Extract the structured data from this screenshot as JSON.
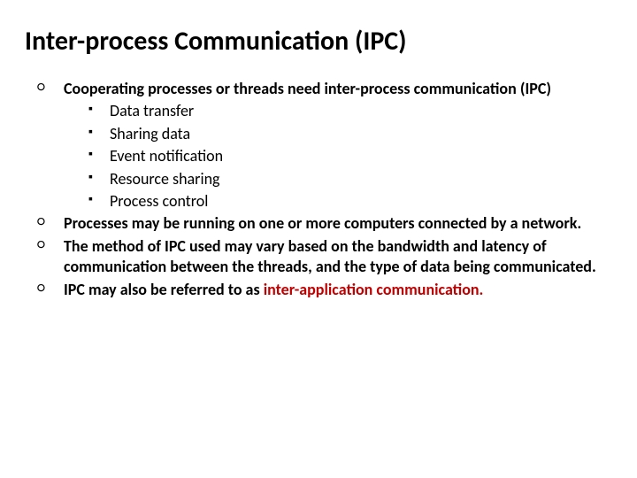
{
  "slide": {
    "title": "Inter-process Communication (IPC)",
    "title_color": "#000000",
    "title_fontsize": 30,
    "title_fontweight": 700,
    "background_color": "#ffffff",
    "body_fontsize": 18,
    "highlight_color": "#c00000",
    "bullets": {
      "level1_marker": "○",
      "level2_marker": "▪",
      "items": [
        {
          "text_parts": [
            {
              "text": "Cooperating processes or threads need inter-process communication (IPC)",
              "bold": true,
              "highlight": false
            }
          ],
          "children": [
            {
              "text": "Data transfer"
            },
            {
              "text": "Sharing data"
            },
            {
              "text": "Event notification"
            },
            {
              "text": "Resource sharing"
            },
            {
              "text": "Process control"
            }
          ]
        },
        {
          "text_parts": [
            {
              "text": "Processes may be running on one or more computers connected by a network.",
              "bold": true,
              "highlight": false
            }
          ]
        },
        {
          "text_parts": [
            {
              "text": "The method of IPC used may vary based on the bandwidth and latency of communication between the threads, and the type of data being communicated.",
              "bold": true,
              "highlight": false
            }
          ]
        },
        {
          "text_parts": [
            {
              "text": "IPC may also be referred to as ",
              "bold": true,
              "highlight": false
            },
            {
              "text": "inter-application communication.",
              "bold": true,
              "highlight": true
            }
          ]
        }
      ]
    }
  }
}
